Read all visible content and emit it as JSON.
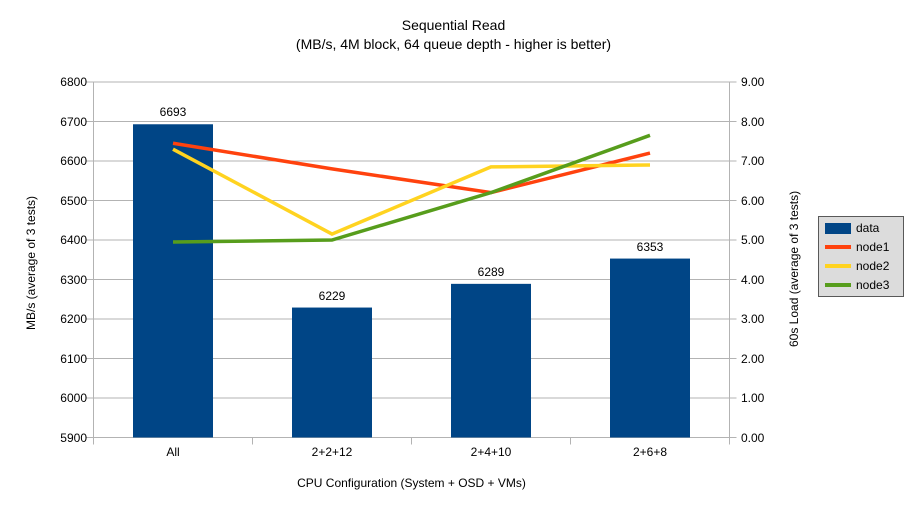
{
  "chart_data": {
    "type": "combo-bar-line",
    "title": "Sequential Read",
    "subtitle": "(MB/s, 4M block, 64 queue depth - higher is better)",
    "x_axis_title": "CPU Configuration (System + OSD + VMs)",
    "categories": [
      "All",
      "2+2+12",
      "2+4+10",
      "2+6+8"
    ],
    "left_axis": {
      "title": "MB/s (average of 3 tests)",
      "min": 5900,
      "max": 6800,
      "step": 100,
      "tick_labels": [
        "5900",
        "6000",
        "6100",
        "6200",
        "6300",
        "6400",
        "6500",
        "6600",
        "6700",
        "6800"
      ]
    },
    "right_axis": {
      "title": "60s Load (average of 3 tests)",
      "min": 0,
      "max": 9,
      "step": 1,
      "tick_labels": [
        "0.00",
        "1.00",
        "2.00",
        "3.00",
        "4.00",
        "5.00",
        "6.00",
        "7.00",
        "8.00",
        "9.00"
      ]
    },
    "series": [
      {
        "name": "data",
        "type": "bar",
        "axis": "left",
        "color": "#004586",
        "values": [
          6693,
          6229,
          6289,
          6353
        ],
        "data_labels": [
          "6693",
          "6229",
          "6289",
          "6353"
        ]
      },
      {
        "name": "node1",
        "type": "line",
        "axis": "right",
        "color": "#FF420E",
        "values": [
          7.45,
          6.8,
          6.2,
          7.2
        ]
      },
      {
        "name": "node2",
        "type": "line",
        "axis": "right",
        "color": "#FFD320",
        "values": [
          7.3,
          5.15,
          6.85,
          6.9
        ]
      },
      {
        "name": "node3",
        "type": "line",
        "axis": "right",
        "color": "#579D1C",
        "values": [
          4.95,
          5.0,
          6.2,
          7.65
        ]
      }
    ],
    "legend": {
      "position": "right",
      "items": [
        {
          "label": "data",
          "swatch": "bar",
          "color": "#004586"
        },
        {
          "label": "node1",
          "swatch": "line",
          "color": "#FF420E"
        },
        {
          "label": "node2",
          "swatch": "line",
          "color": "#FFD320"
        },
        {
          "label": "node3",
          "swatch": "line",
          "color": "#579D1C"
        }
      ]
    },
    "grid": {
      "horizontal": true,
      "vertical": false,
      "color": "#b3b3b3"
    },
    "plot_background": "#ffffff"
  }
}
